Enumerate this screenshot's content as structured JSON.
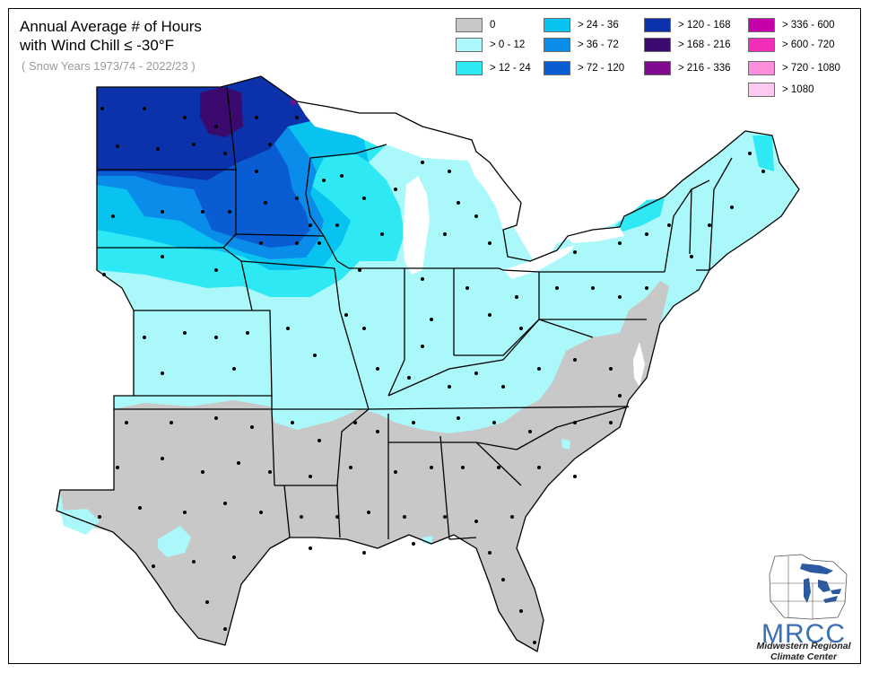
{
  "title": {
    "line1": "Annual Average # of Hours",
    "line2": " with Wind Chill ≤ -30°F"
  },
  "subtitle": "( Snow Years 1973/74 - 2022/23 )",
  "legend": [
    {
      "label": "0",
      "color": "#c8c8c8"
    },
    {
      "label": "> 0 - 12",
      "color": "#aaf8fa"
    },
    {
      "label": "> 12 - 24",
      "color": "#2ee8f4"
    },
    {
      "label": "> 24 - 36",
      "color": "#08c2f0"
    },
    {
      "label": "> 36 - 72",
      "color": "#0a8cea"
    },
    {
      "label": "> 72 - 120",
      "color": "#0a5cd2"
    },
    {
      "label": "> 120 - 168",
      "color": "#0b32aa"
    },
    {
      "label": "> 168 - 216",
      "color": "#3a0a6e"
    },
    {
      "label": "> 216 - 336",
      "color": "#7e0a8e"
    },
    {
      "label": "> 336 - 600",
      "color": "#c600aa"
    },
    {
      "label": "> 600 - 720",
      "color": "#f22eb8"
    },
    {
      "label": "> 720 - 1080",
      "color": "#fc8edc"
    },
    {
      "label": "> 1080",
      "color": "#ffc8f0"
    }
  ],
  "logo": {
    "name": "MRCC",
    "line1": "Midwestern Regional",
    "line2": "Climate Center"
  }
}
